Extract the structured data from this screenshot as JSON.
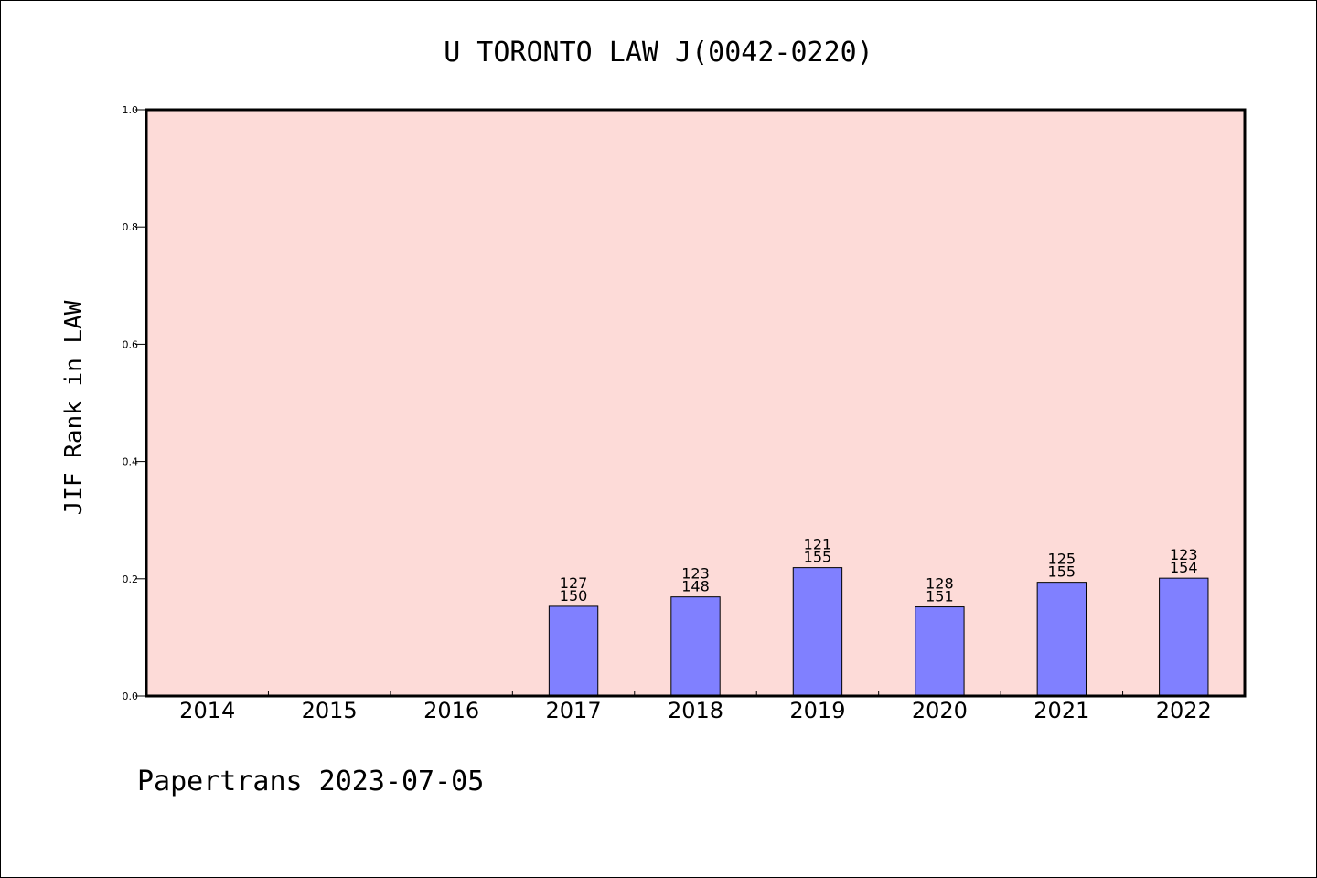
{
  "chart_data": {
    "type": "bar",
    "title": "U TORONTO LAW J(0042-0220)",
    "ylabel": "JIF Rank in LAW",
    "xlabel": "",
    "ylim": [
      0,
      1.0
    ],
    "yticks": [
      0.0,
      0.2,
      0.4,
      0.6,
      0.8,
      1.0
    ],
    "yticks_labels": [
      "0.0",
      "0.2",
      "0.4",
      "0.6",
      "0.8",
      "1.0"
    ],
    "grid": false,
    "categories": [
      "2014",
      "2015",
      "2016",
      "2017",
      "2018",
      "2019",
      "2020",
      "2021",
      "2022"
    ],
    "values": [
      null,
      null,
      null,
      0.153,
      0.169,
      0.219,
      0.152,
      0.194,
      0.201
    ],
    "rank_labels": [
      "",
      "",
      "",
      "127",
      "123",
      "121",
      "128",
      "125",
      "123"
    ],
    "total_labels": [
      "",
      "",
      "",
      "150",
      "148",
      "155",
      "151",
      "155",
      "154"
    ],
    "colors": {
      "plot_background": "#fddbd8",
      "bar_fill": "#8080ff",
      "bar_stroke": "#000000"
    }
  },
  "footer": {
    "text": "Papertrans 2023-07-05"
  }
}
